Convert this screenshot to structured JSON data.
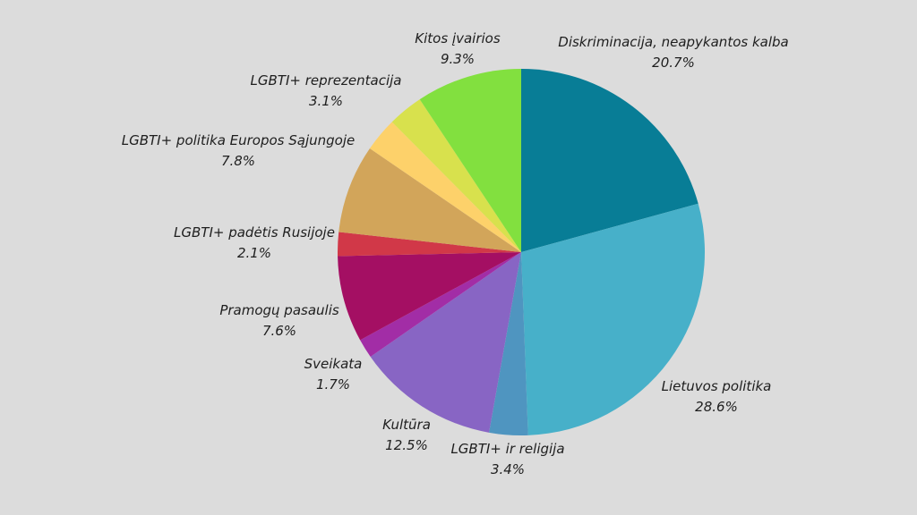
{
  "chart_data": {
    "type": "pie",
    "title": "",
    "slices": [
      {
        "label": "Diskriminacija, neapykantos kalba",
        "pct_text": "20.7%",
        "value": 20.7,
        "color": "#087d96"
      },
      {
        "label": "Lietuvos politika",
        "pct_text": "28.6%",
        "value": 28.6,
        "color": "#47b0c9"
      },
      {
        "label": "LGBTI+ ir religija",
        "pct_text": "3.4%",
        "value": 3.4,
        "color": "#4f95c0"
      },
      {
        "label": "Kultūra",
        "pct_text": "12.5%",
        "value": 12.5,
        "color": "#8865c4"
      },
      {
        "label": "Sveikata",
        "pct_text": "1.7%",
        "value": 1.7,
        "color": "#a22da6"
      },
      {
        "label": "Pramogų pasaulis",
        "pct_text": "7.6%",
        "value": 7.6,
        "color": "#a40f63"
      },
      {
        "label": "LGBTI+ padėtis Rusijoje",
        "pct_text": "2.1%",
        "value": 2.1,
        "color": "#d13848"
      },
      {
        "label": "LGBTI+ politika Europos Sąjungoje",
        "pct_text": "7.8%",
        "value": 7.8,
        "color": "#d2a55a"
      },
      {
        "label": "LGBTI+ reprezentacija",
        "pct_text": "3.1%",
        "value": 3.1,
        "color": "#fdd16a"
      },
      {
        "label": "Kitos įvairios",
        "pct_text": "9.3%",
        "value": 9.3,
        "color": "#d8e14d"
      },
      {
        "label": "",
        "pct_text": "",
        "value": 0,
        "color": "#82e03f"
      }
    ]
  }
}
